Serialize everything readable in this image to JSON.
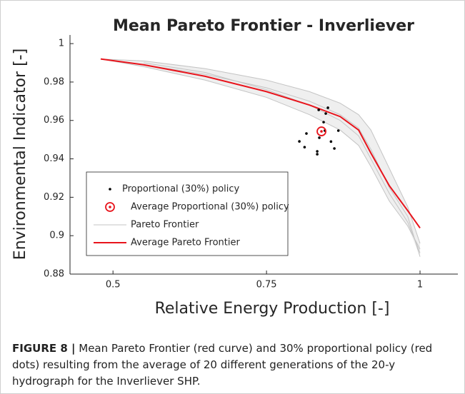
{
  "chart_data": {
    "type": "pareto",
    "title": "Mean Pareto Frontier - Inverliever",
    "x_label": "Relative Energy Production [-]",
    "y_label": "Environmental Indicator [-]",
    "xlim": [
      0.43,
      1.0616
    ],
    "ylim": [
      0.88,
      1.0045
    ],
    "xticks": [
      0.5,
      0.75,
      1
    ],
    "yticks": [
      0.88,
      0.9,
      0.92,
      0.94,
      0.96,
      0.98,
      1
    ],
    "x": [
      0.48,
      0.55,
      0.65,
      0.75,
      0.82,
      0.87,
      0.9,
      0.92,
      0.95,
      0.98,
      1.0
    ],
    "series": [
      {
        "name": "Pareto Frontier",
        "color": "#c4c4c4",
        "lines": [
          [
            0.992,
            0.991,
            0.987,
            0.981,
            0.975,
            0.969,
            0.963,
            0.955,
            0.935,
            0.915,
            0.896
          ],
          [
            0.992,
            0.988,
            0.981,
            0.972,
            0.963,
            0.955,
            0.947,
            0.936,
            0.918,
            0.905,
            0.893
          ],
          [
            0.992,
            0.989,
            0.984,
            0.977,
            0.97,
            0.963,
            0.956,
            0.945,
            0.925,
            0.91,
            0.889
          ],
          [
            null,
            0.99,
            0.985,
            0.976,
            0.968,
            0.96,
            0.952,
            0.94,
            0.922,
            0.907,
            0.891
          ]
        ]
      },
      {
        "name": "Average Pareto Frontier",
        "color": "#e8141c",
        "values": [
          0.992,
          0.989,
          0.983,
          0.975,
          0.968,
          0.962,
          0.955,
          0.943,
          0.926,
          0.913,
          0.904
        ]
      }
    ],
    "policy": {
      "name": "Proportional (30%) policy",
      "color": "#000000",
      "x": [
        0.845,
        0.85,
        0.835,
        0.8465,
        0.843,
        0.867,
        0.815,
        0.836,
        0.8035,
        0.812,
        0.855,
        0.8605,
        0.8326,
        0.8326
      ],
      "y": [
        0.9547,
        0.9666,
        0.9655,
        0.9636,
        0.9591,
        0.9547,
        0.9532,
        0.951,
        0.9491,
        0.9461,
        0.949,
        0.9454,
        0.9439,
        0.9424
      ]
    },
    "average_policy": {
      "name": "Average Proportional (30%) policy",
      "color": "#e8141c",
      "x": 0.8395,
      "y": 0.9543
    }
  },
  "caption": {
    "label": "FIGURE 8 |",
    "text": "Mean Pareto Frontier (red curve) and 30% proportional policy (red dots) resulting from the average of 20 different generations of the 20-y hydrograph for the Inverliever SHP."
  }
}
